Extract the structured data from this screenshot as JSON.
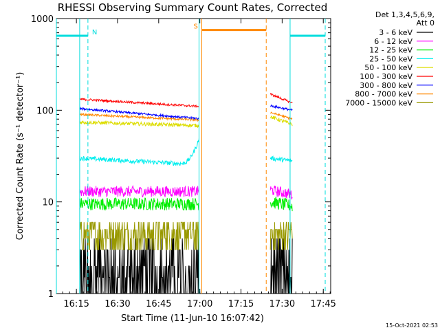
{
  "chart_data": {
    "type": "line",
    "title": "RHESSI Observing Summary Count Rates, Corrected",
    "xlabel": "Start Time (11-Jun-10 16:07:42)",
    "ylabel": "Corrected Count Rate (s⁻¹ detector⁻¹)",
    "y_scale": "log",
    "ylim": [
      1,
      1000
    ],
    "xlim_minutes": [
      0,
      100
    ],
    "x_ticks": [
      {
        "label": "16:15",
        "min": 7.3
      },
      {
        "label": "16:30",
        "min": 22.3
      },
      {
        "label": "16:45",
        "min": 37.3
      },
      {
        "label": "17:00",
        "min": 52.3
      },
      {
        "label": "17:15",
        "min": 67.3
      },
      {
        "label": "17:30",
        "min": 82.3
      },
      {
        "label": "17:45",
        "min": 97.3
      }
    ],
    "y_ticks": [
      {
        "label": "1",
        "value": 1
      },
      {
        "label": "10",
        "value": 10
      },
      {
        "label": "100",
        "value": 100
      },
      {
        "label": "1000",
        "value": 1000
      }
    ],
    "legend_header": [
      "Det 1,3,4,5,6,9,",
      "Att 0"
    ],
    "legend_position": "top-right, outside plot",
    "series": [
      {
        "name": "3 - 6 keV",
        "color": "#000000",
        "segments": [
          {
            "t": [
              8.5,
              52.0
            ],
            "values": [
              1.5,
              1.5
            ]
          },
          {
            "t": [
              78.0,
              86.0
            ],
            "values": [
              1.5,
              1.5
            ]
          }
        ]
      },
      {
        "name": "6 - 12 keV",
        "color": "#ff00ff",
        "segments": [
          {
            "t": [
              8.5,
              52.0
            ],
            "values": [
              13,
              13
            ]
          },
          {
            "t": [
              78.0,
              86.0
            ],
            "values": [
              13.5,
              12
            ]
          }
        ]
      },
      {
        "name": "12 - 25 keV",
        "color": "#00ee00",
        "segments": [
          {
            "t": [
              8.5,
              52.0
            ],
            "values": [
              9.5,
              9.5
            ]
          },
          {
            "t": [
              78.0,
              86.0
            ],
            "values": [
              10,
              9
            ]
          }
        ]
      },
      {
        "name": "25 - 50 keV",
        "color": "#00eeee",
        "segments": [
          {
            "t": [
              8.5,
              52.0
            ],
            "values": [
              30,
              25.5
            ],
            "end_rise": 48
          },
          {
            "t": [
              78.0,
              86.0
            ],
            "values": [
              30,
              28
            ]
          }
        ]
      },
      {
        "name": "50 - 100 keV",
        "color": "#dddd00",
        "segments": [
          {
            "t": [
              8.5,
              52.0
            ],
            "values": [
              74,
              68
            ]
          },
          {
            "t": [
              78.0,
              86.0
            ],
            "values": [
              85,
              70
            ]
          }
        ]
      },
      {
        "name": "100 - 300 keV",
        "color": "#ff0000",
        "segments": [
          {
            "t": [
              8.5,
              52.0
            ],
            "values": [
              132,
              110
            ]
          },
          {
            "t": [
              78.0,
              86.0
            ],
            "values": [
              150,
              120
            ]
          }
        ]
      },
      {
        "name": "300 - 800 keV",
        "color": "#0000ff",
        "segments": [
          {
            "t": [
              8.5,
              52.0
            ],
            "values": [
              104,
              81
            ]
          },
          {
            "t": [
              78.0,
              86.0
            ],
            "values": [
              112,
              100
            ]
          }
        ]
      },
      {
        "name": "800 - 7000 keV",
        "color": "#ff8800",
        "segments": [
          {
            "t": [
              8.5,
              52.0
            ],
            "values": [
              90,
              78
            ]
          },
          {
            "t": [
              78.0,
              86.0
            ],
            "values": [
              95,
              80
            ]
          }
        ]
      },
      {
        "name": "7000 - 15000 keV",
        "color": "#999900",
        "segments": [
          {
            "t": [
              8.5,
              52.0
            ],
            "values": [
              4,
              4
            ]
          },
          {
            "t": [
              78.0,
              86.0
            ],
            "values": [
              4,
              3.5
            ]
          }
        ]
      }
    ],
    "flags": [
      {
        "label": "N",
        "color": "#00dddd",
        "level": 650,
        "bars": [
          [
            0,
            11.5
          ],
          [
            85.2,
            98.0
          ]
        ],
        "dashed_lines": [
          11.5,
          98.0
        ],
        "solid_lines": [
          0,
          8.5,
          52.0,
          85.2
        ]
      },
      {
        "label": "S",
        "color": "#ff8800",
        "level": 750,
        "bars": [
          [
            53.0,
            76.5
          ]
        ],
        "dashed_lines": [
          76.5
        ],
        "solid_lines": [
          53.0
        ]
      }
    ],
    "timestamp": "15-Oct-2021 02:53"
  }
}
